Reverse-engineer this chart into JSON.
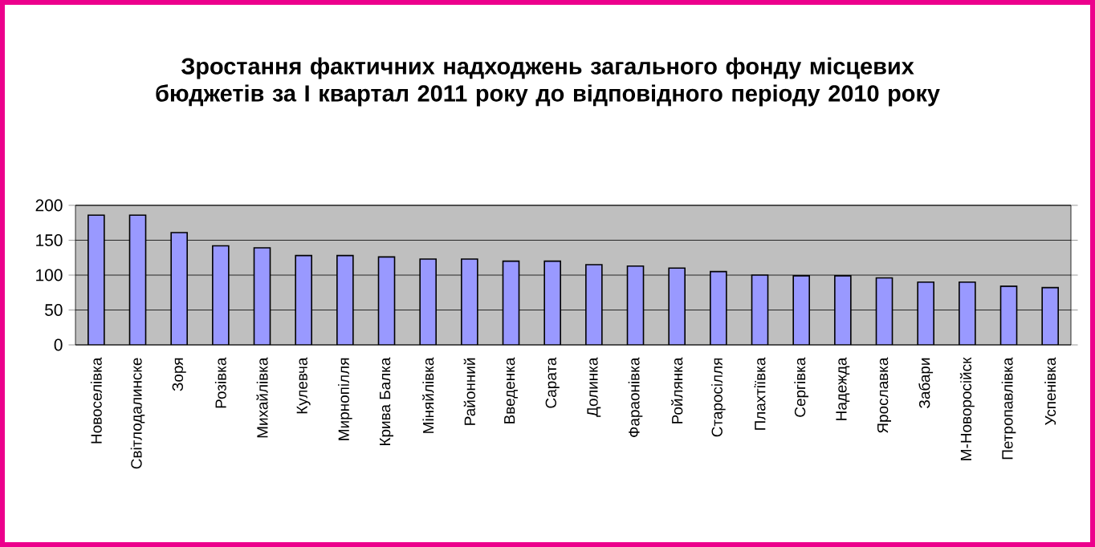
{
  "chart_data": {
    "type": "bar",
    "title": "Зростання фактичних надходжень загального фонду місцевих бюджетів за I квартал  2011 року  до відповідного періоду 2010 року",
    "categories": [
      "Новоселівка",
      "Світлодалинске",
      "Зоря",
      "Розівка",
      "Михайлівка",
      "Кулевча",
      "Мирнопілля",
      "Крива Балка",
      "Міняйлівка",
      "Районний",
      "Введенка",
      "Сарата",
      "Долинка",
      "Фараонівка",
      "Ройлянка",
      "Старосілля",
      "Плахтіївка",
      "Сергівка",
      "Надежда",
      "Ярославка",
      "Забари",
      "М-Новоросійск",
      "Петропавлівка",
      "Успенівка"
    ],
    "values": [
      186,
      186,
      161,
      142,
      139,
      128,
      128,
      126,
      123,
      123,
      120,
      120,
      115,
      113,
      110,
      105,
      100,
      99,
      99,
      96,
      90,
      90,
      84,
      82
    ],
    "color": "#9999ff",
    "ylim": [
      0,
      200
    ],
    "yticks": [
      0,
      50,
      100,
      150,
      200
    ],
    "grid": "y"
  }
}
